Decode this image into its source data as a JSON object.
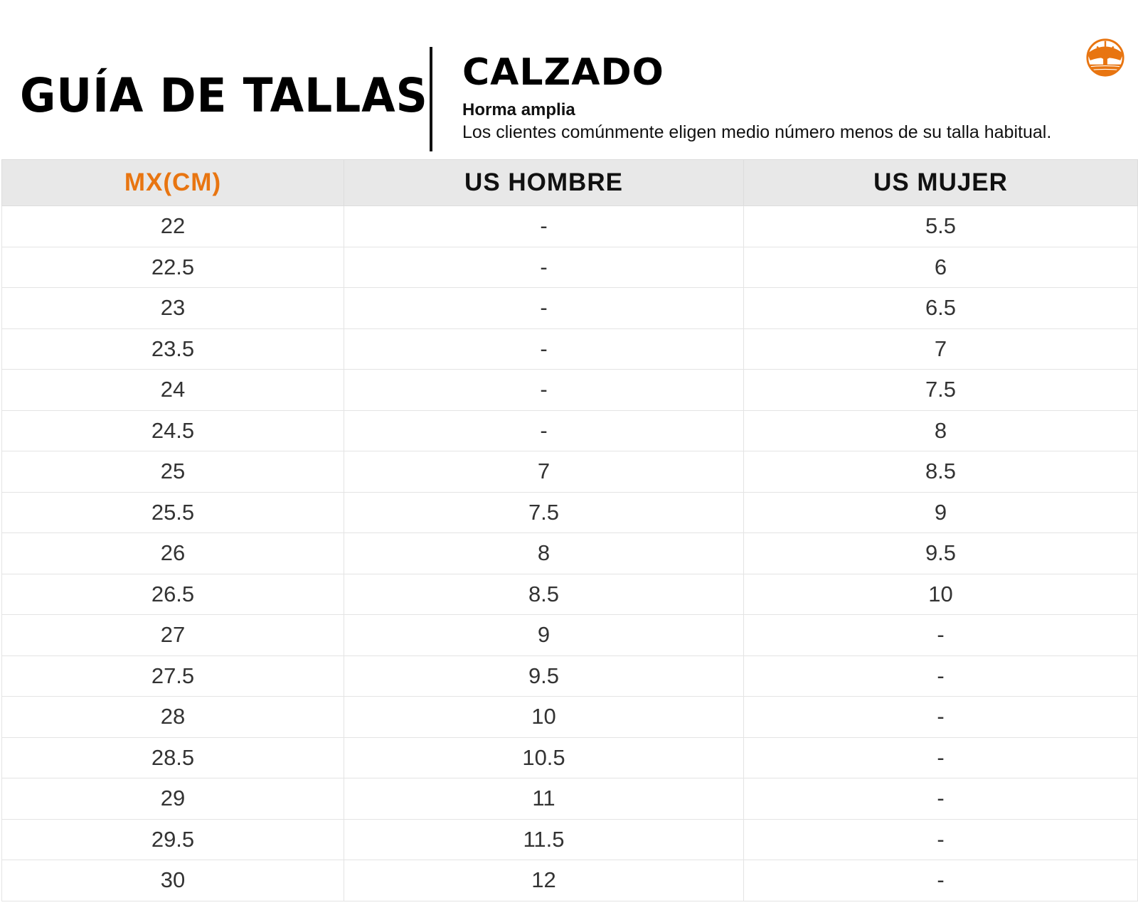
{
  "header": {
    "title": "GUÍA DE TALLAS",
    "category": "CALZADO",
    "fit": "Horma amplia",
    "note": "Los clientes comúnmente eligen medio número menos de su talla habitual.",
    "logo_icon": "timberland-tree-icon",
    "brand_color": "#e87511"
  },
  "table": {
    "columns": [
      "MX(CM)",
      "US HOMBRE",
      "US MUJER"
    ],
    "rows": [
      [
        "22",
        "-",
        "5.5"
      ],
      [
        "22.5",
        "-",
        "6"
      ],
      [
        "23",
        "-",
        "6.5"
      ],
      [
        "23.5",
        "-",
        "7"
      ],
      [
        "24",
        "-",
        "7.5"
      ],
      [
        "24.5",
        "-",
        "8"
      ],
      [
        "25",
        "7",
        "8.5"
      ],
      [
        "25.5",
        "7.5",
        "9"
      ],
      [
        "26",
        "8",
        "9.5"
      ],
      [
        "26.5",
        "8.5",
        "10"
      ],
      [
        "27",
        "9",
        "-"
      ],
      [
        "27.5",
        "9.5",
        "-"
      ],
      [
        "28",
        "10",
        "-"
      ],
      [
        "28.5",
        "10.5",
        "-"
      ],
      [
        "29",
        "11",
        "-"
      ],
      [
        "29.5",
        "11.5",
        "-"
      ],
      [
        "30",
        "12",
        "-"
      ]
    ]
  }
}
